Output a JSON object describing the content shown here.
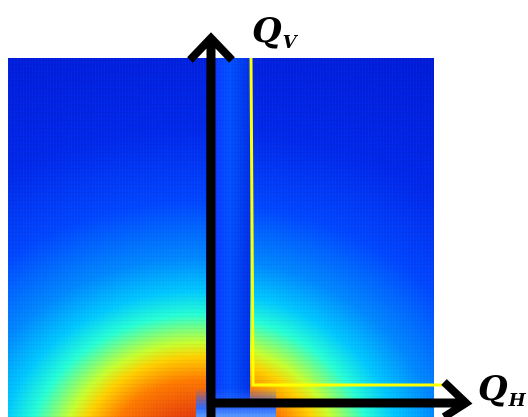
{
  "figure": {
    "axis_v": {
      "letter": "Q",
      "subscript": "V"
    },
    "axis_h": {
      "letter": "Q",
      "subscript": "H"
    },
    "colors": {
      "axis_arrows": "#000000",
      "integration_path": "#ffff00",
      "background": "#ffffff"
    },
    "colormap": [
      "#0018d5",
      "#0046ff",
      "#0088ff",
      "#00c8ff",
      "#26ffd6",
      "#c8ff2e",
      "#ffd100",
      "#ff7a00",
      "#e8420a",
      "#c81a00"
    ]
  }
}
